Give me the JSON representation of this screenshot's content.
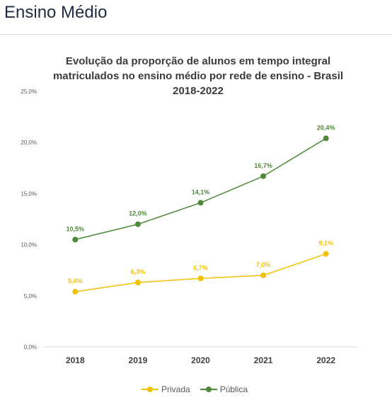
{
  "header": {
    "title": "Ensino Médio"
  },
  "chart_data": {
    "type": "line",
    "title": [
      "Evolução da proporção de alunos em tempo integral",
      "matriculados no ensino médio por rede de ensino - Brasil",
      "2018-2022"
    ],
    "xlabel": "",
    "ylabel": "",
    "categories": [
      "2018",
      "2019",
      "2020",
      "2021",
      "2022"
    ],
    "ylim": [
      0,
      25
    ],
    "yticks": [
      0,
      5,
      10,
      15,
      20,
      25
    ],
    "ytick_labels": [
      "0,0%",
      "5,0%",
      "10,0%",
      "15,0%",
      "20,0%",
      "25,0%"
    ],
    "grid": false,
    "legend_position": "bottom",
    "series": [
      {
        "name": "Privada",
        "color": "#f2c200",
        "values": [
          5.4,
          6.3,
          6.7,
          7.0,
          9.1
        ],
        "labels": [
          "5,4%",
          "6,3%",
          "6,7%",
          "7,0%",
          "9,1%"
        ]
      },
      {
        "name": "Pública",
        "color": "#4e8a3a",
        "values": [
          10.5,
          12.0,
          14.1,
          16.7,
          20.4
        ],
        "labels": [
          "10,5%",
          "12,0%",
          "14,1%",
          "16,7%",
          "20,4%"
        ]
      }
    ]
  }
}
